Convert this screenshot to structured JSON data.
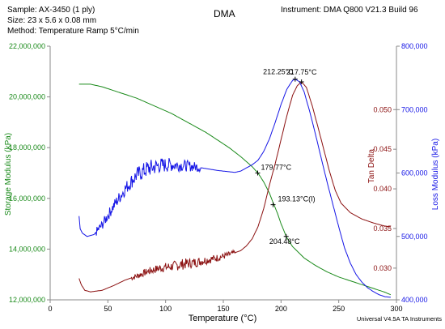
{
  "header": {
    "sample": "Sample: AX-3450 (1 ply)",
    "size": "Size:  23 x 5.6 x 0.08 mm",
    "method": "Method: Temperature Ramp 5°C/min",
    "title": "DMA",
    "instrument": "Instrument: DMA Q800 V21.3 Build 96"
  },
  "footer": {
    "software": "Universal V4.5A TA Instruments"
  },
  "colors": {
    "storage": "#1a8a1a",
    "tandelta": "#8b1010",
    "loss": "#1515e6",
    "axis": "#888888",
    "text": "#000000"
  },
  "chart_data": {
    "type": "line",
    "xlabel": "Temperature (°C)",
    "xlim": [
      0,
      300
    ],
    "x_ticks": [
      0,
      50,
      100,
      150,
      200,
      250,
      300
    ],
    "y_axes": {
      "storage": {
        "label": "Storage Modulus (kPa)",
        "lim": [
          12000000,
          22000000
        ],
        "ticks": [
          12000000,
          14000000,
          16000000,
          18000000,
          20000000,
          22000000
        ],
        "tick_labels": [
          "12,000,000",
          "14,000,000",
          "16,000,000",
          "18,000,000",
          "20,000,000",
          "22,000,000"
        ]
      },
      "tandelta": {
        "label": "Tan Delta",
        "lim": [
          0.026,
          0.058
        ],
        "ticks": [
          0.03,
          0.035,
          0.04,
          0.045,
          0.05
        ],
        "tick_labels": [
          "0.030",
          "0.035",
          "0.040",
          "0.045",
          "0.050"
        ]
      },
      "loss": {
        "label": "Loss Modulus (kPa)",
        "lim": [
          400000,
          800000
        ],
        "ticks": [
          400000,
          500000,
          600000,
          700000,
          800000
        ],
        "tick_labels": [
          "400,000",
          "500,000",
          "600,000",
          "700,000",
          "800,000"
        ]
      }
    },
    "series": [
      {
        "key": "storage",
        "points": [
          [
            25,
            20500000
          ],
          [
            35,
            20500000
          ],
          [
            45,
            20400000
          ],
          [
            55,
            20250000
          ],
          [
            65,
            20100000
          ],
          [
            75,
            19950000
          ],
          [
            85,
            19750000
          ],
          [
            95,
            19550000
          ],
          [
            105,
            19350000
          ],
          [
            115,
            19100000
          ],
          [
            125,
            18850000
          ],
          [
            135,
            18600000
          ],
          [
            145,
            18300000
          ],
          [
            155,
            18000000
          ],
          [
            165,
            17650000
          ],
          [
            175,
            17250000
          ],
          [
            180,
            17000000
          ],
          [
            185,
            16650000
          ],
          [
            190,
            16200000
          ],
          [
            193,
            15850000
          ],
          [
            197,
            15400000
          ],
          [
            200,
            15000000
          ],
          [
            205,
            14450000
          ],
          [
            210,
            14100000
          ],
          [
            220,
            13650000
          ],
          [
            230,
            13350000
          ],
          [
            240,
            13100000
          ],
          [
            250,
            12900000
          ],
          [
            260,
            12750000
          ],
          [
            270,
            12600000
          ],
          [
            280,
            12450000
          ],
          [
            290,
            12300000
          ],
          [
            295,
            12200000
          ]
        ]
      },
      {
        "key": "tandelta",
        "points": [
          [
            25,
            0.0287
          ],
          [
            27,
            0.0279
          ],
          [
            30,
            0.0272
          ],
          [
            35,
            0.027
          ],
          [
            45,
            0.0272
          ],
          [
            55,
            0.0278
          ],
          [
            65,
            0.0285
          ],
          [
            75,
            0.029
          ],
          [
            85,
            0.0296
          ],
          [
            95,
            0.03
          ],
          [
            105,
            0.0302
          ],
          [
            115,
            0.0305
          ],
          [
            125,
            0.0307
          ],
          [
            135,
            0.031
          ],
          [
            145,
            0.0313
          ],
          [
            155,
            0.0317
          ],
          [
            165,
            0.0322
          ],
          [
            170,
            0.0328
          ],
          [
            175,
            0.0337
          ],
          [
            180,
            0.0352
          ],
          [
            185,
            0.0375
          ],
          [
            190,
            0.0405
          ],
          [
            195,
            0.0432
          ],
          [
            200,
            0.0462
          ],
          [
            205,
            0.0492
          ],
          [
            210,
            0.0518
          ],
          [
            214,
            0.053
          ],
          [
            217.75,
            0.0535
          ],
          [
            222,
            0.0528
          ],
          [
            227,
            0.0505
          ],
          [
            232,
            0.0478
          ],
          [
            237,
            0.045
          ],
          [
            242,
            0.0422
          ],
          [
            247,
            0.0398
          ],
          [
            252,
            0.0382
          ],
          [
            260,
            0.037
          ],
          [
            270,
            0.0362
          ],
          [
            280,
            0.0357
          ],
          [
            290,
            0.0353
          ],
          [
            295,
            0.0352
          ]
        ]
      },
      {
        "key": "loss",
        "points": [
          [
            25,
            532000
          ],
          [
            26,
            512000
          ],
          [
            28,
            505000
          ],
          [
            32,
            500000
          ],
          [
            38,
            503000
          ],
          [
            45,
            518000
          ],
          [
            55,
            548000
          ],
          [
            65,
            575000
          ],
          [
            75,
            597000
          ],
          [
            85,
            607000
          ],
          [
            95,
            612000
          ],
          [
            105,
            613000
          ],
          [
            115,
            612000
          ],
          [
            125,
            610000
          ],
          [
            135,
            607000
          ],
          [
            145,
            604000
          ],
          [
            155,
            602000
          ],
          [
            160,
            601000
          ],
          [
            165,
            603000
          ],
          [
            170,
            608000
          ],
          [
            175,
            613000
          ],
          [
            180,
            620000
          ],
          [
            185,
            634000
          ],
          [
            190,
            654000
          ],
          [
            195,
            680000
          ],
          [
            200,
            708000
          ],
          [
            205,
            732000
          ],
          [
            210,
            746000
          ],
          [
            212.25,
            748000
          ],
          [
            216,
            744000
          ],
          [
            220,
            728000
          ],
          [
            225,
            696000
          ],
          [
            230,
            660000
          ],
          [
            235,
            622000
          ],
          [
            240,
            585000
          ],
          [
            245,
            550000
          ],
          [
            250,
            515000
          ],
          [
            255,
            482000
          ],
          [
            260,
            458000
          ],
          [
            265,
            440000
          ],
          [
            270,
            428000
          ],
          [
            275,
            419000
          ],
          [
            280,
            413000
          ],
          [
            285,
            408000
          ],
          [
            290,
            405000
          ],
          [
            295,
            404000
          ]
        ]
      }
    ],
    "noise_bands": [
      {
        "key": "loss",
        "from": 40,
        "to": 130,
        "amp": 14000
      },
      {
        "key": "tandelta",
        "from": 70,
        "to": 160,
        "amp": 0.0007
      }
    ],
    "annotations": [
      {
        "label": "179.77°C",
        "x": 179.77,
        "axis": "storage",
        "y": 17000000
      },
      {
        "label": "193.13°C(I)",
        "x": 193.13,
        "axis": "storage",
        "y": 15750000
      },
      {
        "label": "204.48°C",
        "x": 204.48,
        "axis": "storage",
        "y": 14500000
      },
      {
        "label": "212.25°C",
        "x": 212.25,
        "axis": "loss",
        "y": 748000
      },
      {
        "label": "217.75°C",
        "x": 217.75,
        "axis": "tandelta",
        "y": 0.0535
      }
    ]
  }
}
